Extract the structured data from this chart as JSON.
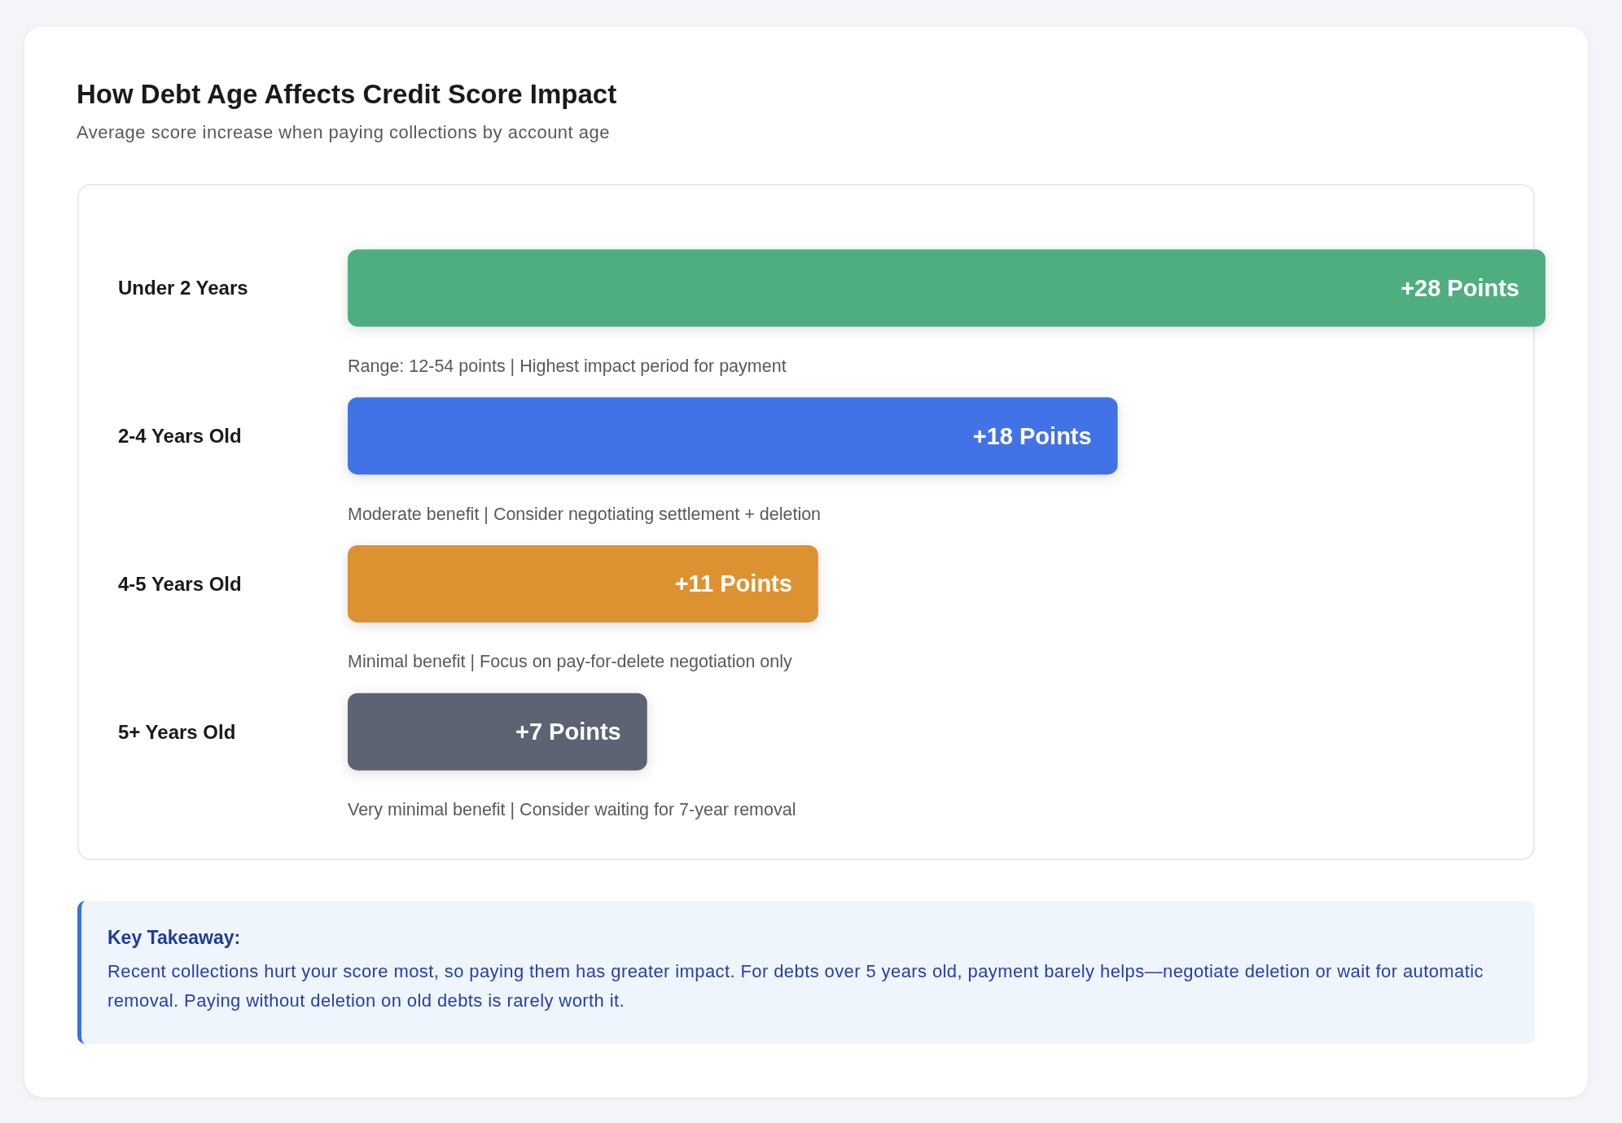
{
  "chart_data": {
    "type": "bar",
    "orientation": "horizontal",
    "title": "How Debt Age Affects Credit Score Impact",
    "subtitle": "Average score increase when paying collections by account age",
    "categories": [
      "Under 2 Years",
      "2-4 Years Old",
      "4-5 Years Old",
      "5+ Years Old"
    ],
    "values": [
      28,
      18,
      11,
      7
    ],
    "colors": [
      "#4fae80",
      "#4273e6",
      "#dd9233",
      "#5c6372"
    ],
    "value_labels": [
      "+28 Points",
      "+18 Points",
      "+11 Points",
      "+7 Points"
    ],
    "tick_labels": "y",
    "annotations": [
      "Range: 12-54 points | Highest impact period for payment",
      "Moderate benefit | Consider negotiating settlement + deletion",
      "Minimal benefit | Focus on pay-for-delete negotiation only",
      "Very minimal benefit | Consider waiting for 7-year removal",
      "Key Takeaway:",
      "Recent collections hurt your score most, so paying them has greater impact. For debts over 5 years old, payment barely helps—negotiate deletion or wait for automatic removal. Paying without deletion on old debts is rarely worth it."
    ]
  }
}
